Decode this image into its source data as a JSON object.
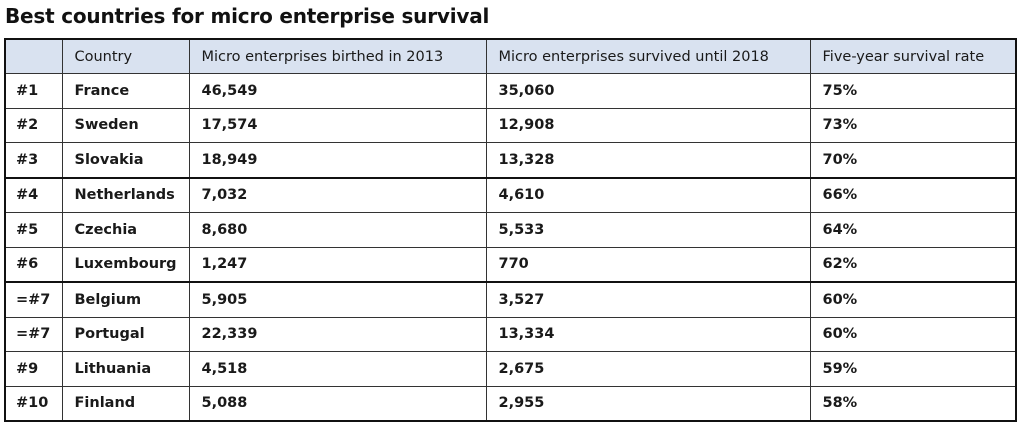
{
  "title": "Best countries for micro enterprise survival",
  "table": {
    "headers": [
      "",
      "Country",
      "Micro enterprises birthed in 2013",
      "Micro enterprises survived until 2018",
      "Five-year survival rate"
    ],
    "rows": [
      {
        "rank": "#1",
        "country": "France",
        "birthed": "46,549",
        "survived": "35,060",
        "rate": "75%"
      },
      {
        "rank": "#2",
        "country": "Sweden",
        "birthed": "17,574",
        "survived": "12,908",
        "rate": "73%"
      },
      {
        "rank": "#3",
        "country": "Slovakia",
        "birthed": "18,949",
        "survived": "13,328",
        "rate": "70%"
      },
      {
        "rank": "#4",
        "country": "Netherlands",
        "birthed": "7,032",
        "survived": "4,610",
        "rate": "66%"
      },
      {
        "rank": "#5",
        "country": "Czechia",
        "birthed": "8,680",
        "survived": "5,533",
        "rate": "64%"
      },
      {
        "rank": "#6",
        "country": "Luxembourg",
        "birthed": "1,247",
        "survived": "770",
        "rate": "62%"
      },
      {
        "rank": "=#7",
        "country": "Belgium",
        "birthed": "5,905",
        "survived": "3,527",
        "rate": "60%"
      },
      {
        "rank": "=#7",
        "country": "Portugal",
        "birthed": "22,339",
        "survived": "13,334",
        "rate": "60%"
      },
      {
        "rank": "#9",
        "country": "Lithuania",
        "birthed": "4,518",
        "survived": "2,675",
        "rate": "59%"
      },
      {
        "rank": "#10",
        "country": "Finland",
        "birthed": "5,088",
        "survived": "2,955",
        "rate": "58%"
      }
    ]
  },
  "colors": {
    "header_background": "#d9e2f0",
    "border": "#333333",
    "text": "#1a1a1a"
  }
}
